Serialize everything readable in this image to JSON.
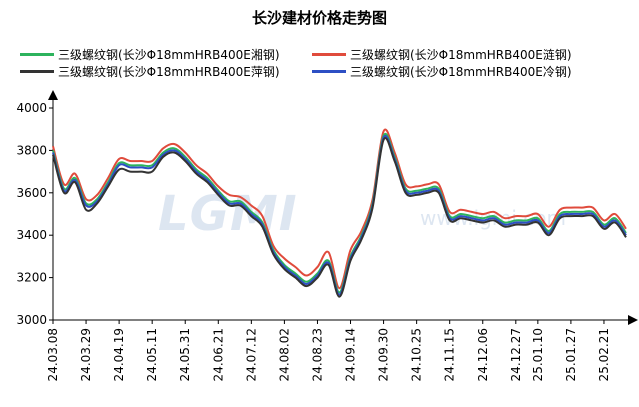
{
  "chart_data": {
    "type": "line",
    "title": "长沙建材价格走势图",
    "watermark": "LGMI",
    "watermark_url": "www.lgmi.com",
    "xlabel": "",
    "ylabel": "",
    "ylim": [
      3000,
      4000
    ],
    "yticks": [
      3000,
      3200,
      3400,
      3600,
      3800,
      4000
    ],
    "legend_position": "top",
    "grid": false,
    "x": [
      "24.03.08",
      "24.03.15",
      "24.03.22",
      "24.03.29",
      "24.04.05",
      "24.04.12",
      "24.04.19",
      "24.04.26",
      "24.05.03",
      "24.05.11",
      "24.05.18",
      "24.05.24",
      "24.05.31",
      "24.06.07",
      "24.06.14",
      "24.06.21",
      "24.06.28",
      "24.07.05",
      "24.07.12",
      "24.07.19",
      "24.07.26",
      "24.08.02",
      "24.08.09",
      "24.08.16",
      "24.08.23",
      "24.08.30",
      "24.09.06",
      "24.09.14",
      "24.09.20",
      "24.09.27",
      "24.09.30",
      "24.10.11",
      "24.10.18",
      "24.10.25",
      "24.11.01",
      "24.11.08",
      "24.11.15",
      "24.11.22",
      "24.11.29",
      "24.12.06",
      "24.12.13",
      "24.12.20",
      "24.12.27",
      "25.01.03",
      "25.01.10",
      "25.01.17",
      "25.01.24",
      "25.01.27",
      "25.02.07",
      "25.02.14",
      "25.02.21",
      "25.02.28",
      "25.03.07"
    ],
    "xtick_labels": [
      "24.03.08",
      "24.03.29",
      "24.04.19",
      "24.05.11",
      "24.05.31",
      "24.06.21",
      "24.07.12",
      "24.08.02",
      "24.08.23",
      "24.09.14",
      "24.09.30",
      "24.10.25",
      "24.11.15",
      "24.12.06",
      "24.12.27",
      "25.01.10",
      "25.01.27",
      "25.02.21"
    ],
    "series": [
      {
        "name": "三级螺纹钢(长沙Φ18mmHRB400E湘钢)",
        "color": "#2db35d",
        "values": [
          3800,
          3620,
          3670,
          3550,
          3570,
          3650,
          3740,
          3730,
          3730,
          3730,
          3790,
          3810,
          3770,
          3710,
          3670,
          3610,
          3560,
          3560,
          3510,
          3460,
          3330,
          3260,
          3220,
          3180,
          3220,
          3280,
          3130,
          3300,
          3400,
          3550,
          3870,
          3770,
          3620,
          3610,
          3620,
          3620,
          3490,
          3500,
          3490,
          3480,
          3490,
          3460,
          3470,
          3470,
          3480,
          3420,
          3500,
          3510,
          3510,
          3510,
          3450,
          3480,
          3410
        ]
      },
      {
        "name": "三级螺纹钢(长沙Φ18mmHRB400E涟钢)",
        "color": "#e04b3c",
        "values": [
          3820,
          3640,
          3690,
          3570,
          3590,
          3670,
          3760,
          3750,
          3750,
          3750,
          3810,
          3830,
          3790,
          3730,
          3690,
          3630,
          3590,
          3580,
          3540,
          3490,
          3350,
          3290,
          3250,
          3210,
          3250,
          3320,
          3150,
          3330,
          3420,
          3570,
          3890,
          3790,
          3640,
          3630,
          3640,
          3640,
          3510,
          3520,
          3510,
          3500,
          3510,
          3480,
          3490,
          3490,
          3500,
          3440,
          3520,
          3530,
          3530,
          3530,
          3470,
          3500,
          3430
        ]
      },
      {
        "name": "三级螺纹钢(长沙Φ18mmHRB400E萍钢)",
        "color": "#333333",
        "values": [
          3780,
          3600,
          3650,
          3520,
          3550,
          3630,
          3710,
          3700,
          3700,
          3700,
          3770,
          3790,
          3750,
          3690,
          3650,
          3590,
          3540,
          3540,
          3490,
          3440,
          3310,
          3240,
          3200,
          3160,
          3200,
          3260,
          3110,
          3280,
          3380,
          3530,
          3850,
          3750,
          3600,
          3590,
          3600,
          3600,
          3470,
          3480,
          3470,
          3460,
          3470,
          3440,
          3450,
          3450,
          3460,
          3400,
          3480,
          3490,
          3490,
          3490,
          3430,
          3460,
          3390
        ]
      },
      {
        "name": "三级螺纹钢(长沙Φ18mmHRB400E冷钢)",
        "color": "#2d4fc4",
        "values": [
          3790,
          3610,
          3660,
          3540,
          3560,
          3640,
          3730,
          3720,
          3720,
          3720,
          3780,
          3800,
          3760,
          3700,
          3660,
          3600,
          3550,
          3550,
          3500,
          3450,
          3320,
          3250,
          3210,
          3170,
          3210,
          3270,
          3120,
          3290,
          3390,
          3540,
          3860,
          3760,
          3610,
          3600,
          3610,
          3610,
          3480,
          3490,
          3480,
          3470,
          3480,
          3450,
          3460,
          3460,
          3470,
          3410,
          3490,
          3500,
          3500,
          3500,
          3440,
          3470,
          3400
        ]
      }
    ]
  }
}
